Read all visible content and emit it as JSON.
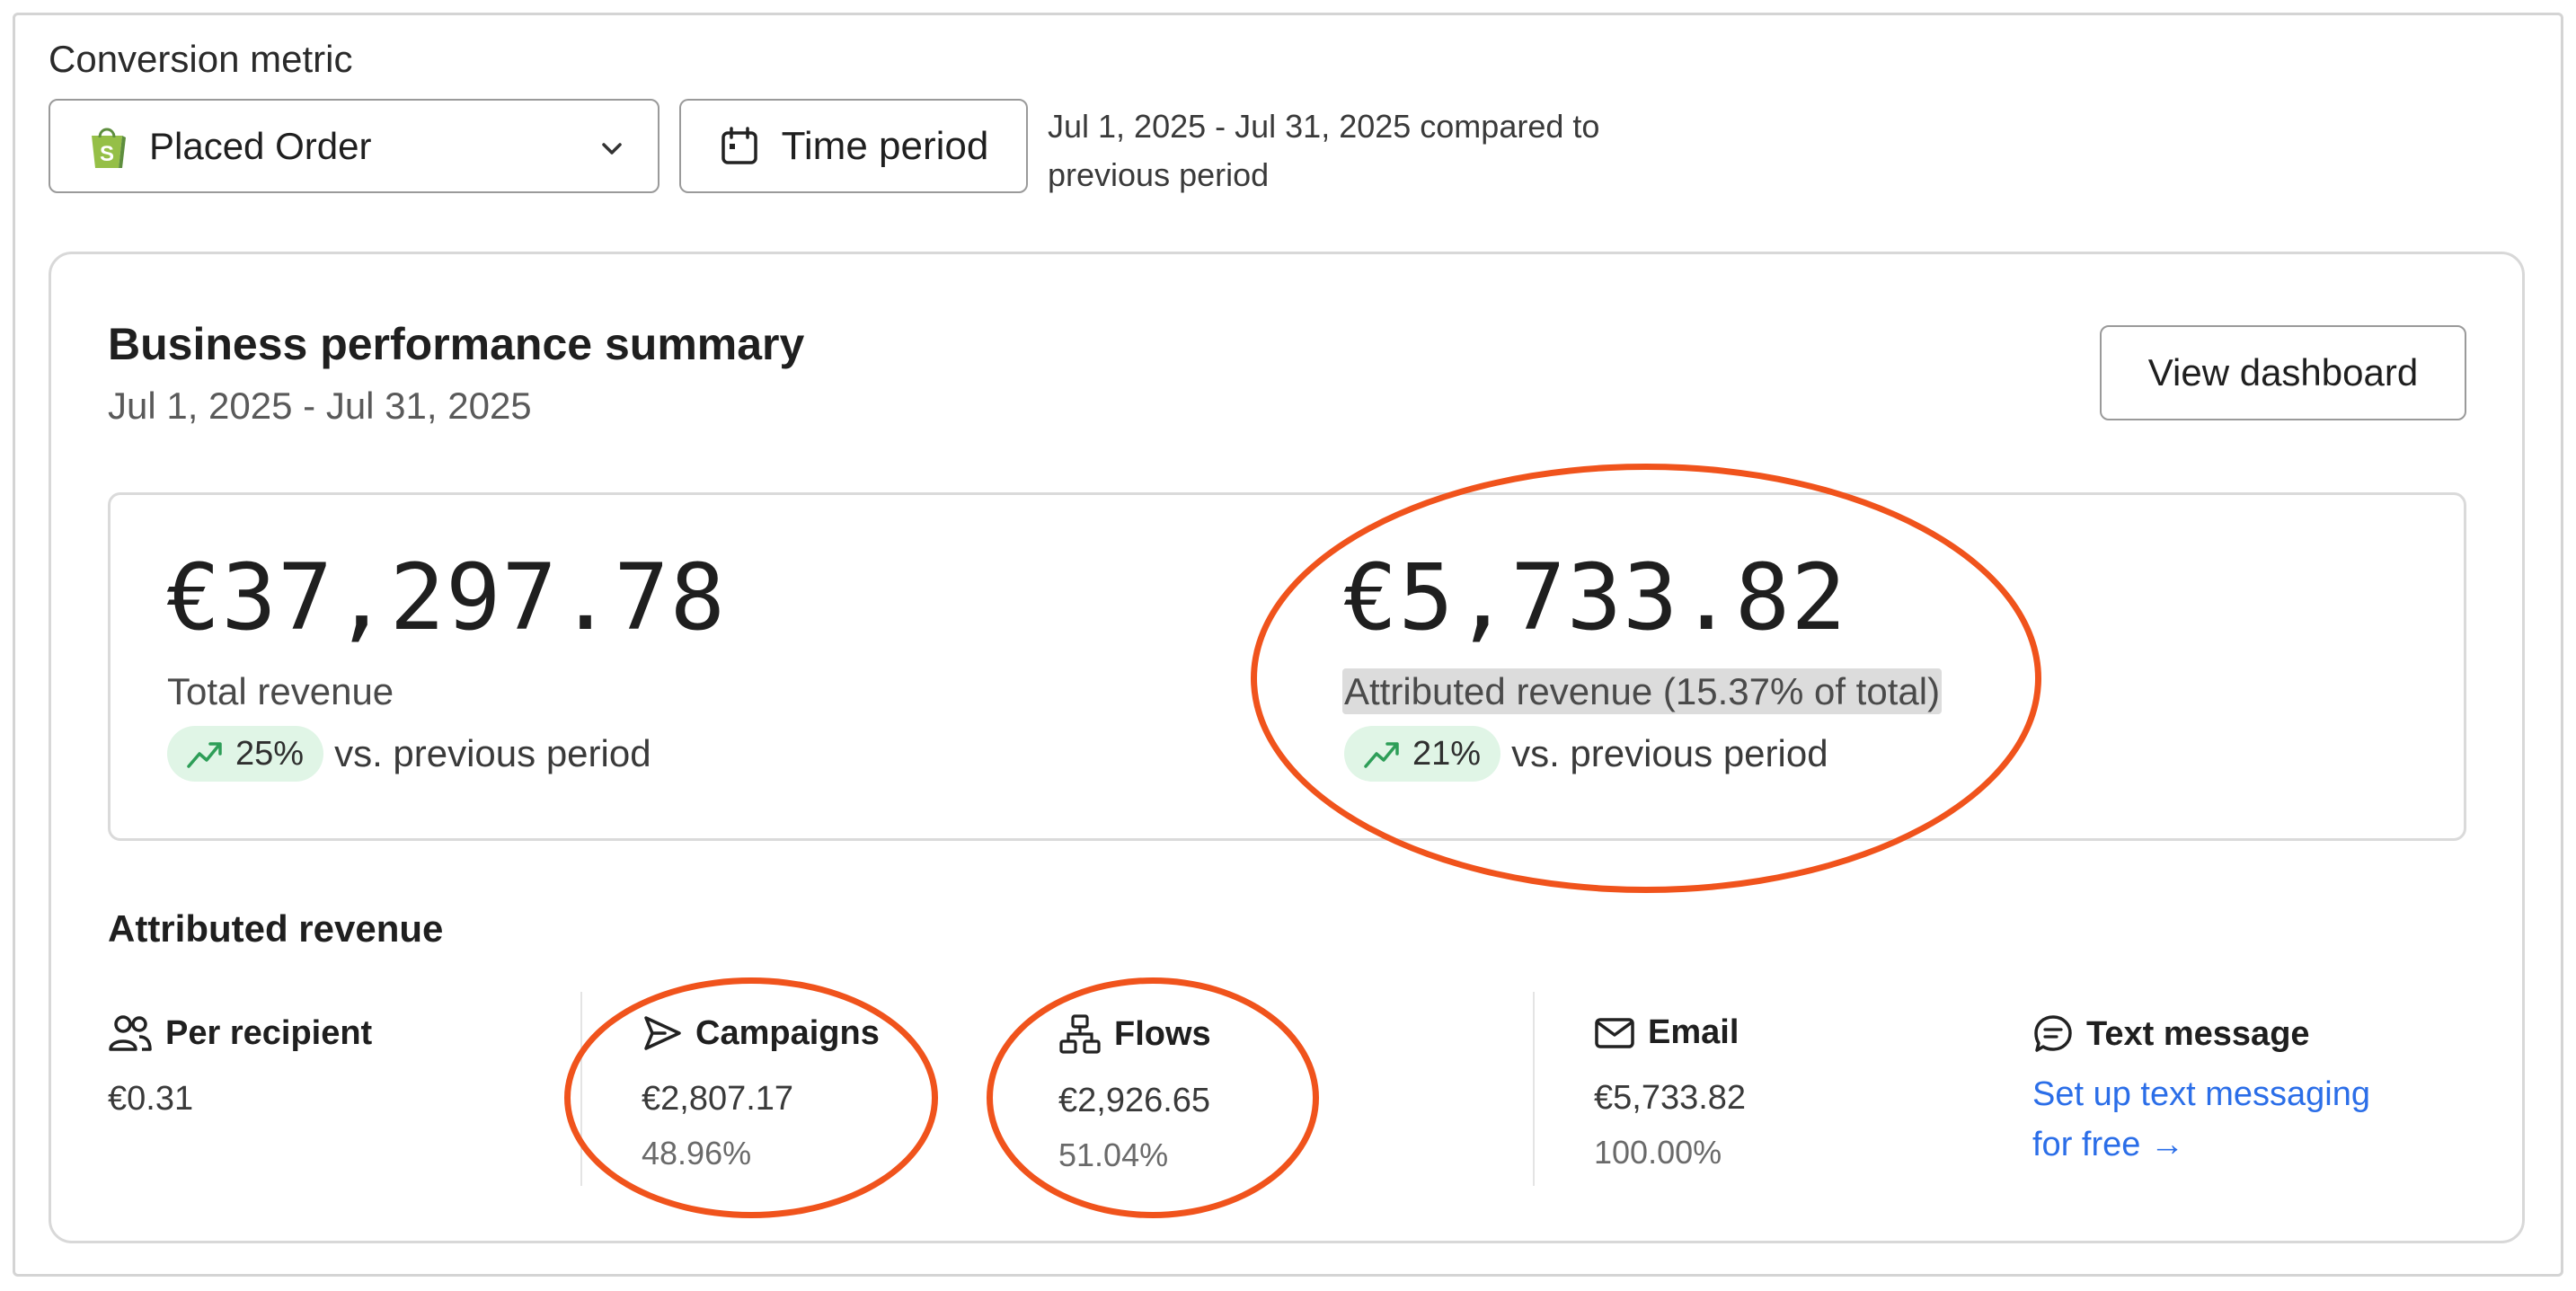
{
  "conversion": {
    "label": "Conversion metric",
    "metric_value": "Placed Order",
    "metric_icon": "shopify-bag-icon",
    "time_button": "Time period",
    "range_line1": "Jul 1, 2025 - Jul 31, 2025 compared to",
    "range_line2": "previous period"
  },
  "summary": {
    "title": "Business performance summary",
    "date_range": "Jul 1, 2025 - Jul 31, 2025",
    "view_button": "View dashboard",
    "total": {
      "value": "€37,297.78",
      "label": "Total revenue",
      "change": "25%",
      "vs": "vs. previous period"
    },
    "attributed": {
      "value": "€5,733.82",
      "label": "Attributed revenue (15.37% of total)",
      "change": "21%",
      "vs": "vs. previous period"
    }
  },
  "attributed_section": {
    "title": "Attributed revenue",
    "columns": [
      {
        "name": "Per recipient",
        "icon": "people-icon",
        "value": "€0.31"
      },
      {
        "name": "Campaigns",
        "icon": "send-icon",
        "value": "€2,807.17",
        "percent": "48.96%"
      },
      {
        "name": "Flows",
        "icon": "flow-icon",
        "value": "€2,926.65",
        "percent": "51.04%"
      },
      {
        "name": "Email",
        "icon": "mail-icon",
        "value": "€5,733.82",
        "percent": "100.00%"
      },
      {
        "name": "Text message",
        "icon": "chat-icon",
        "link_line1": "Set up text messaging",
        "link_line2": "for free →"
      }
    ]
  },
  "colors": {
    "accent_link": "#2b6ee8",
    "trend_green": "#2e9e58",
    "pill_bg": "#e0f5e6",
    "annotation": "#f0531c"
  }
}
